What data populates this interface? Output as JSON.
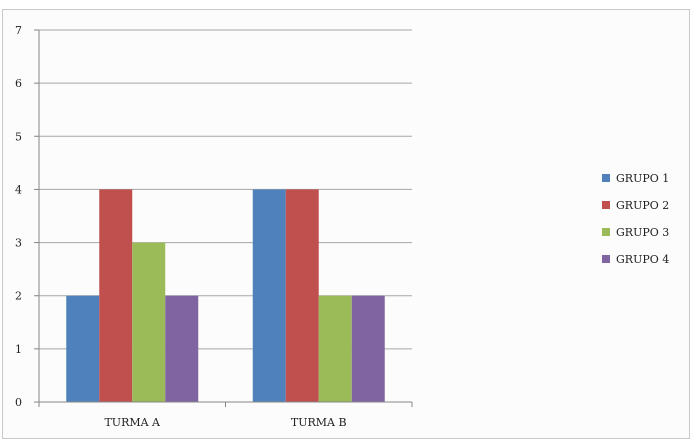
{
  "chart_data": {
    "type": "bar",
    "categories": [
      "TURMA A",
      "TURMA B"
    ],
    "series": [
      {
        "name": "GRUPO 1",
        "color": "#4f81bd",
        "values": [
          2,
          4
        ]
      },
      {
        "name": "GRUPO 2",
        "color": "#c0504d",
        "values": [
          4,
          4
        ]
      },
      {
        "name": "GRUPO  3",
        "color": "#9bbb59",
        "values": [
          3,
          2
        ]
      },
      {
        "name": "GRUPO 4",
        "color": "#8064a2",
        "values": [
          2,
          2
        ]
      }
    ],
    "ylim": [
      0,
      7
    ],
    "yticks": [
      "0",
      "1",
      "2",
      "3",
      "4",
      "5",
      "6",
      "7"
    ],
    "grid": true,
    "legend_position": "right",
    "title": "",
    "xlabel": "",
    "ylabel": ""
  }
}
